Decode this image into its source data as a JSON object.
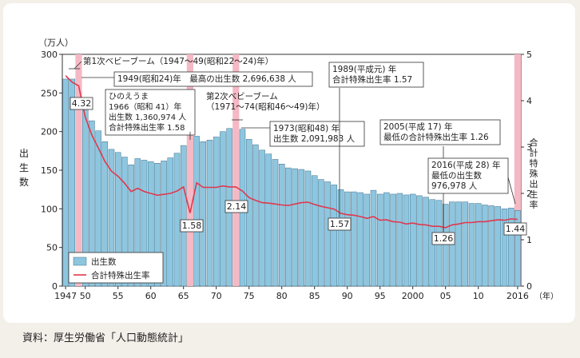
{
  "chart_data": {
    "type": "bar",
    "y_unit": "（万人）",
    "ylabel": "出生数",
    "y2label": "合計特殊出生率",
    "x_unit": "（年）",
    "ylim": [
      0,
      300
    ],
    "y2lim": [
      0,
      5
    ],
    "yticks": [
      "0",
      "50",
      "100",
      "150",
      "200",
      "250",
      "300"
    ],
    "y2ticks": [
      "0",
      "1",
      "2",
      "3",
      "4",
      "5"
    ],
    "xtick_labels": [
      {
        "year": 1947,
        "label": "1947"
      },
      {
        "year": 1950,
        "label": "50"
      },
      {
        "year": 1955,
        "label": "55"
      },
      {
        "year": 1960,
        "label": "60"
      },
      {
        "year": 1965,
        "label": "65"
      },
      {
        "year": 1970,
        "label": "70"
      },
      {
        "year": 1975,
        "label": "75"
      },
      {
        "year": 1980,
        "label": "80"
      },
      {
        "year": 1985,
        "label": "85"
      },
      {
        "year": 1990,
        "label": "90"
      },
      {
        "year": 1995,
        "label": "95"
      },
      {
        "year": 2000,
        "label": "2000"
      },
      {
        "year": 2005,
        "label": "05"
      },
      {
        "year": 2010,
        "label": "10"
      },
      {
        "year": 2016,
        "label": "2016"
      }
    ],
    "years": [
      1947,
      1948,
      1949,
      1950,
      1951,
      1952,
      1953,
      1954,
      1955,
      1956,
      1957,
      1958,
      1959,
      1960,
      1961,
      1962,
      1963,
      1964,
      1965,
      1966,
      1967,
      1968,
      1969,
      1970,
      1971,
      1972,
      1973,
      1974,
      1975,
      1976,
      1977,
      1978,
      1979,
      1980,
      1981,
      1982,
      1983,
      1984,
      1985,
      1986,
      1987,
      1988,
      1989,
      1990,
      1991,
      1992,
      1993,
      1994,
      1995,
      1996,
      1997,
      1998,
      1999,
      2000,
      2001,
      2002,
      2003,
      2004,
      2005,
      2006,
      2007,
      2008,
      2009,
      2010,
      2011,
      2012,
      2013,
      2014,
      2015,
      2016
    ],
    "series": [
      {
        "name": "出生数",
        "axis": "left",
        "values": [
          268,
          268,
          270,
          234,
          214,
          201,
          187,
          177,
          173,
          167,
          157,
          165,
          163,
          161,
          159,
          162,
          166,
          172,
          182,
          136,
          194,
          187,
          189,
          193,
          200,
          204,
          209,
          203,
          190,
          183,
          176,
          171,
          164,
          158,
          153,
          152,
          151,
          149,
          143,
          138,
          135,
          131,
          125,
          122,
          122,
          121,
          119,
          124,
          119,
          121,
          119,
          120,
          118,
          119,
          117,
          115,
          112,
          111,
          106,
          109,
          109,
          109,
          107,
          107,
          105,
          104,
          103,
          100,
          101,
          98
        ]
      },
      {
        "name": "合計特殊出生率",
        "axis": "right",
        "values": [
          4.54,
          4.4,
          4.32,
          3.65,
          3.26,
          2.98,
          2.69,
          2.48,
          2.37,
          2.22,
          2.04,
          2.11,
          2.04,
          2.0,
          1.96,
          1.98,
          2.0,
          2.05,
          2.14,
          1.58,
          2.23,
          2.13,
          2.13,
          2.13,
          2.16,
          2.14,
          2.14,
          2.05,
          1.91,
          1.85,
          1.8,
          1.79,
          1.77,
          1.75,
          1.74,
          1.77,
          1.8,
          1.81,
          1.76,
          1.72,
          1.69,
          1.66,
          1.57,
          1.54,
          1.53,
          1.5,
          1.46,
          1.5,
          1.42,
          1.43,
          1.39,
          1.38,
          1.34,
          1.36,
          1.33,
          1.32,
          1.29,
          1.29,
          1.26,
          1.32,
          1.34,
          1.37,
          1.37,
          1.39,
          1.39,
          1.41,
          1.43,
          1.42,
          1.45,
          1.44
        ]
      }
    ],
    "highlight_years": [
      1949,
      1966,
      1973,
      2016
    ],
    "rate_labels": [
      {
        "year": 1949,
        "text": "4.32"
      },
      {
        "year": 1966,
        "text": "1.58"
      },
      {
        "year": 1973,
        "text": "2.14"
      },
      {
        "year": 1989,
        "text": "1.57"
      },
      {
        "year": 2005,
        "text": "1.26"
      },
      {
        "year": 2016,
        "text": "1.44"
      }
    ],
    "legend": {
      "placement": "bottom-left",
      "bars": "出生数",
      "line": "合計特殊出生率"
    },
    "annotations": {
      "boom1": "第1次ベビーブーム（1947～49(昭和22～24)年）",
      "max1949": "1949(昭和24)年　最高の出生数 2,696,638 人",
      "hinoe": [
        "ひのえうま",
        "1966（昭和 41）年",
        "出生数 1,360,974 人",
        "合計特殊出生率 1.58"
      ],
      "boom2": [
        "第2次ベビーブーム",
        "（1971～74(昭和46～49)年）"
      ],
      "y1973": [
        "1973(昭和48) 年",
        "出生数 2,091,983 人"
      ],
      "y1989": [
        "1989(平成元) 年",
        "合計特殊出生率 1.57"
      ],
      "y2005": [
        "2005(平成 17) 年",
        "最低の合計特殊出生率 1.26"
      ],
      "y2016": [
        "2016(平成 28) 年",
        "最低の出生数",
        "976,978 人"
      ]
    }
  },
  "colors": {
    "bar": "#8ec6df",
    "bar_stroke": "#3f6f8c",
    "highlight": "#f4b9c4",
    "line": "#e0384e",
    "axis": "#333333"
  },
  "source_note": "資料：厚生労働省「人口動態統計」"
}
